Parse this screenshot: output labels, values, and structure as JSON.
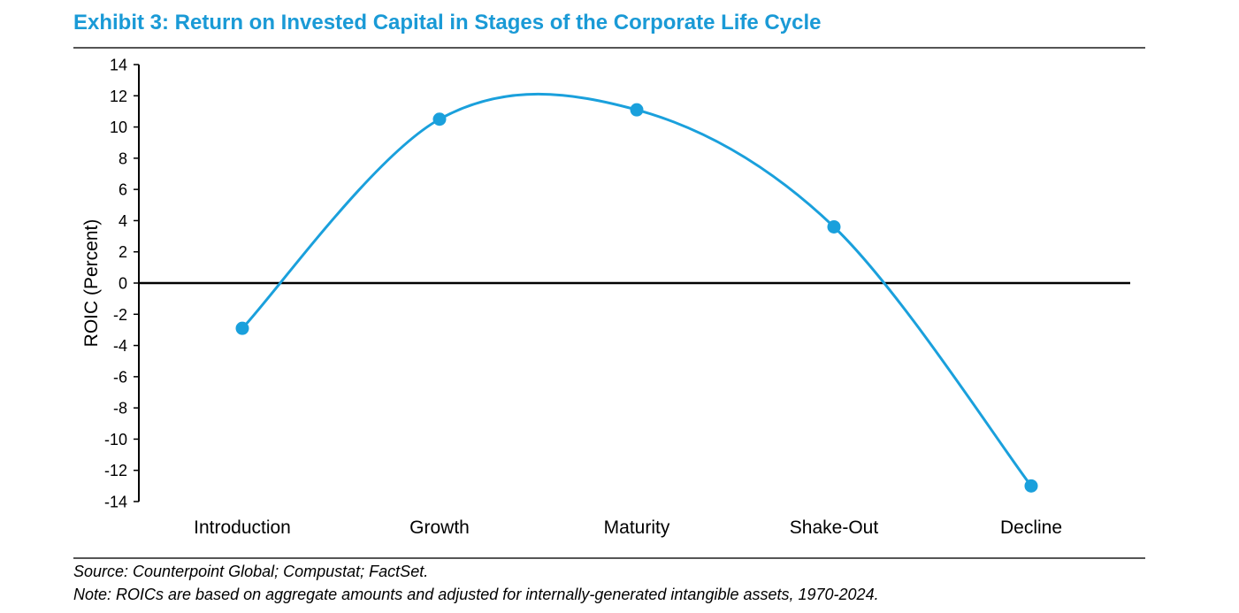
{
  "header": {
    "title": "Exhibit 3: Return on Invested Capital in Stages of the Corporate Life Cycle"
  },
  "footer": {
    "source": "Source: Counterpoint Global; Compustat; FactSet.",
    "note": "Note: ROICs are based on aggregate amounts and adjusted for internally-generated intangible assets, 1970-2024."
  },
  "colors": {
    "accent": "#1a9ad6",
    "line": "#1aa0dc",
    "axis": "#000000"
  },
  "chart_data": {
    "type": "line",
    "smooth": true,
    "markers": true,
    "ylabel": "ROIC (Percent)",
    "xlabel": "",
    "ylim": [
      -14,
      14
    ],
    "yticks": [
      14,
      12,
      10,
      8,
      6,
      4,
      2,
      0,
      -2,
      -4,
      -6,
      -8,
      -10,
      -12,
      -14
    ],
    "categories": [
      "Introduction",
      "Growth",
      "Maturity",
      "Shake-Out",
      "Decline"
    ],
    "series": [
      {
        "values": [
          -2.9,
          10.5,
          11.1,
          3.6,
          -13.0
        ]
      }
    ],
    "grid": false,
    "legend": "none"
  }
}
